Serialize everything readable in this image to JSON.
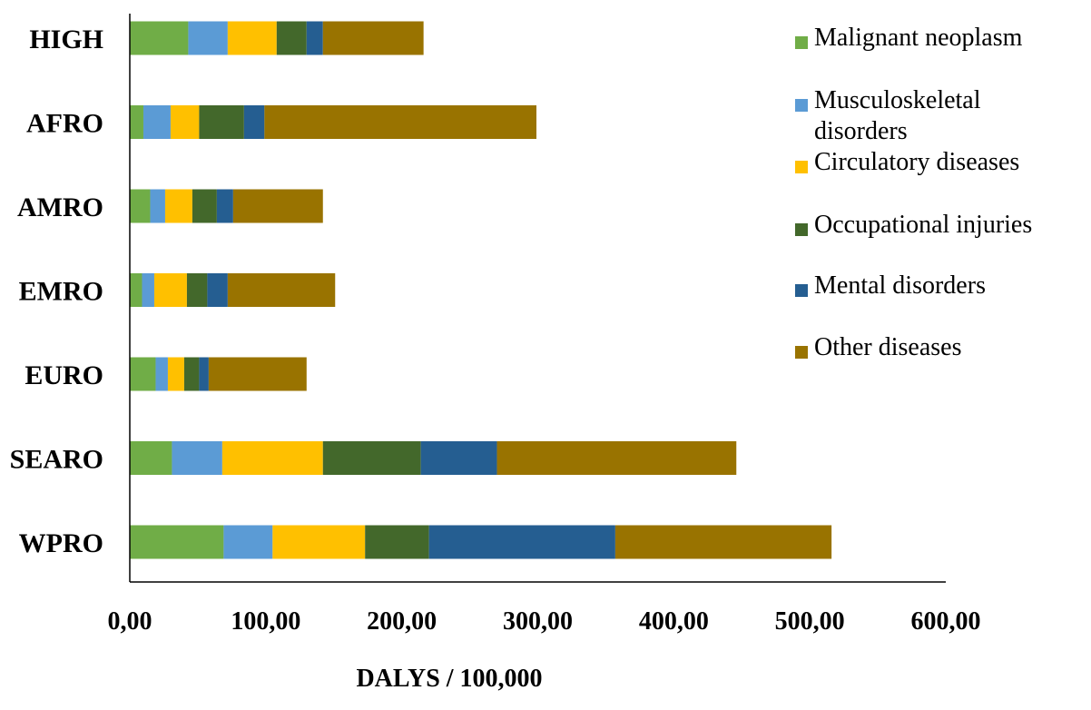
{
  "chart_data": {
    "type": "bar",
    "orientation": "horizontal",
    "stacked": true,
    "categories": [
      "HIGH",
      "AFRO",
      "AMRO",
      "EMRO",
      "EURO",
      "SEARO",
      "WPRO"
    ],
    "series": [
      {
        "name": "Malignant neoplasm",
        "color": "#70AD47",
        "values": [
          43,
          10,
          15,
          9,
          19,
          31,
          69
        ]
      },
      {
        "name": "Musculoskeletal disorders",
        "color": "#5B9BD5",
        "values": [
          29,
          20,
          11,
          9,
          9,
          37,
          36
        ]
      },
      {
        "name": "Circulatory diseases",
        "color": "#FFC000",
        "values": [
          36,
          21,
          20,
          24,
          12,
          74,
          68
        ]
      },
      {
        "name": "Occupational injuries",
        "color": "#43682B",
        "values": [
          22,
          33,
          18,
          15,
          11,
          72,
          47
        ]
      },
      {
        "name": "Mental disorders",
        "color": "#255E91",
        "values": [
          12,
          15,
          12,
          15,
          7,
          56,
          137
        ]
      },
      {
        "name": "Other diseases",
        "color": "#997300",
        "values": [
          74,
          200,
          66,
          79,
          72,
          176,
          159
        ]
      }
    ],
    "title": "",
    "xlabel": "DALYS / 100,000",
    "ylabel": "",
    "xlim": [
      0,
      600
    ],
    "xticks": [
      0,
      100,
      200,
      300,
      400,
      500,
      600
    ],
    "xtick_labels": [
      "0,00",
      "100,00",
      "200,00",
      "300,00",
      "400,00",
      "500,00",
      "600,00"
    ],
    "grid": false,
    "legend_position": "right"
  }
}
